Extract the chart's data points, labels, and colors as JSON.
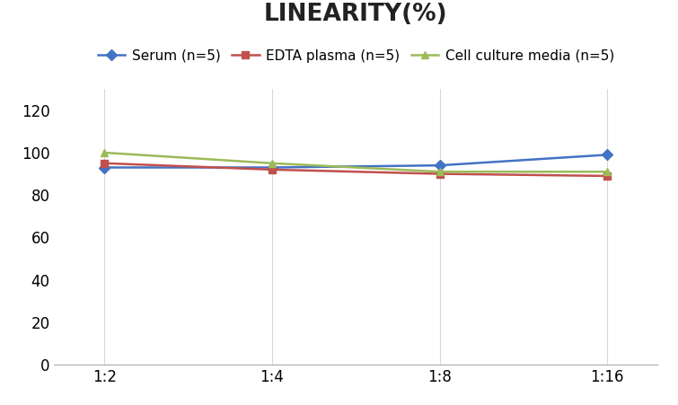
{
  "title": "LINEARITY(%)",
  "x_labels": [
    "1:2",
    "1:4",
    "1:8",
    "1:16"
  ],
  "x_positions": [
    0,
    1,
    2,
    3
  ],
  "series": [
    {
      "label": "Serum (n=5)",
      "values": [
        93,
        93,
        94,
        99
      ],
      "color": "#4472C4",
      "marker": "D"
    },
    {
      "label": "EDTA plasma (n=5)",
      "values": [
        95,
        92,
        90,
        89
      ],
      "color": "#C0504D",
      "marker": "s"
    },
    {
      "label": "Cell culture media (n=5)",
      "values": [
        100,
        95,
        91,
        91
      ],
      "color": "#9BBB59",
      "marker": "^"
    }
  ],
  "ylim": [
    0,
    130
  ],
  "yticks": [
    0,
    20,
    40,
    60,
    80,
    100,
    120
  ],
  "title_fontsize": 19,
  "legend_fontsize": 11,
  "tick_fontsize": 12,
  "background_color": "#ffffff",
  "grid_color": "#d8d8d8"
}
